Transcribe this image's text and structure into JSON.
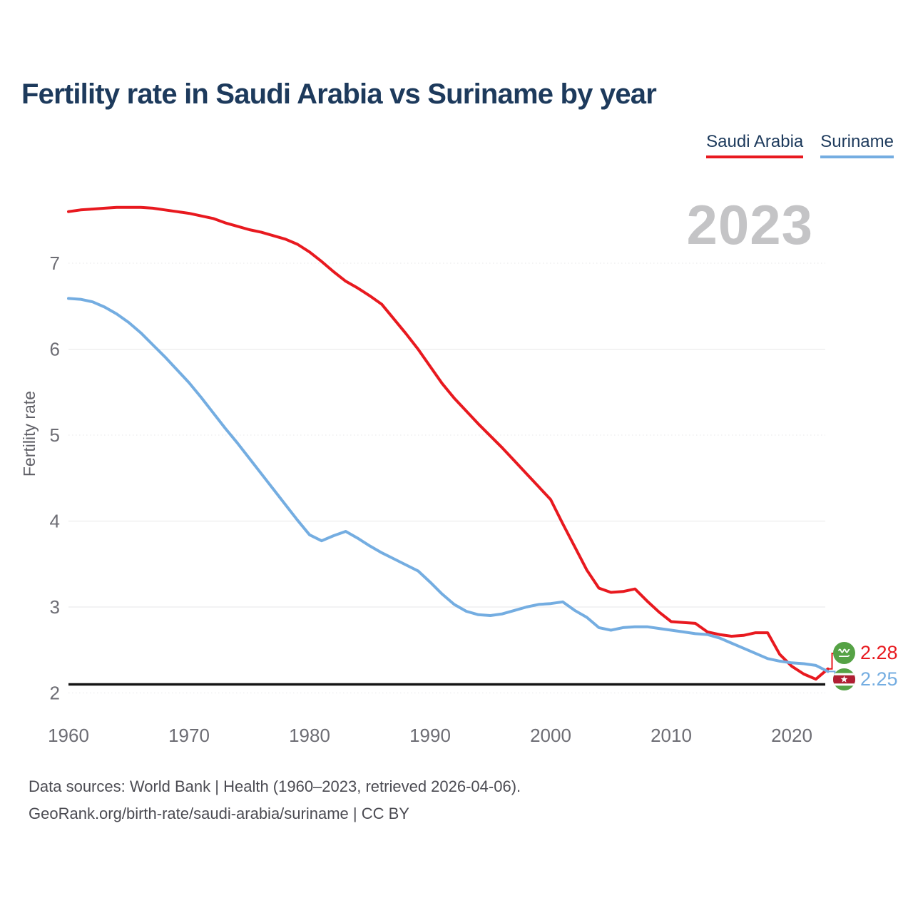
{
  "watermark": "2023",
  "footer": {
    "line1": "Data sources: World Bank | Health (1960–2023, retrieved 2026-04-06).",
    "line2": "GeoRank.org/birth-rate/saudi-arabia/suriname | CC BY"
  },
  "chart_data": {
    "type": "line",
    "title": "Fertility rate in Saudi Arabia vs Suriname by year",
    "ylabel": "Fertility rate",
    "xlabel": "",
    "watermark": "2023",
    "x_ticks": [
      1960,
      1970,
      1980,
      1990,
      2000,
      2010,
      2020
    ],
    "y_ticks": [
      7,
      6,
      5,
      4,
      3,
      2
    ],
    "xlim": [
      1960,
      2023
    ],
    "ylim": [
      2,
      7.8
    ],
    "grid": true,
    "legend_position": "top-right",
    "grid_color": "#e7e7e8",
    "axis_text_color": "#6d6d74",
    "reference_line": {
      "value": 2.1,
      "color": "#141414"
    },
    "years": [
      1960,
      1961,
      1962,
      1963,
      1964,
      1965,
      1966,
      1967,
      1968,
      1969,
      1970,
      1971,
      1972,
      1973,
      1974,
      1975,
      1976,
      1977,
      1978,
      1979,
      1980,
      1981,
      1982,
      1983,
      1984,
      1985,
      1986,
      1987,
      1988,
      1989,
      1990,
      1991,
      1992,
      1993,
      1994,
      1995,
      1996,
      1997,
      1998,
      1999,
      2000,
      2001,
      2002,
      2003,
      2004,
      2005,
      2006,
      2007,
      2008,
      2009,
      2010,
      2011,
      2012,
      2013,
      2014,
      2015,
      2016,
      2017,
      2018,
      2019,
      2020,
      2021,
      2022,
      2023
    ],
    "series": [
      {
        "name": "Saudi Arabia",
        "color": "#e8191f",
        "end_label": "2.28",
        "flag_icon": "saudi-arabia-flag-icon",
        "values": [
          7.6,
          7.62,
          7.63,
          7.64,
          7.65,
          7.65,
          7.65,
          7.64,
          7.62,
          7.6,
          7.58,
          7.55,
          7.52,
          7.47,
          7.43,
          7.39,
          7.36,
          7.32,
          7.28,
          7.22,
          7.13,
          7.02,
          6.9,
          6.79,
          6.71,
          6.62,
          6.52,
          6.35,
          6.18,
          6.0,
          5.8,
          5.6,
          5.43,
          5.28,
          5.13,
          4.99,
          4.85,
          4.7,
          4.55,
          4.4,
          4.25,
          3.97,
          3.7,
          3.43,
          3.22,
          3.17,
          3.18,
          3.21,
          3.07,
          2.94,
          2.83,
          2.82,
          2.81,
          2.71,
          2.68,
          2.66,
          2.67,
          2.7,
          2.7,
          2.45,
          2.31,
          2.22,
          2.16,
          2.28
        ]
      },
      {
        "name": "Suriname",
        "color": "#74ade1",
        "end_label": "2.25",
        "flag_icon": "suriname-flag-icon",
        "values": [
          6.59,
          6.58,
          6.55,
          6.49,
          6.41,
          6.31,
          6.19,
          6.05,
          5.91,
          5.76,
          5.61,
          5.44,
          5.26,
          5.08,
          4.91,
          4.73,
          4.55,
          4.37,
          4.19,
          4.01,
          3.84,
          3.77,
          3.83,
          3.88,
          3.8,
          3.71,
          3.63,
          3.56,
          3.49,
          3.42,
          3.29,
          3.15,
          3.03,
          2.95,
          2.91,
          2.9,
          2.92,
          2.96,
          3.0,
          3.03,
          3.04,
          3.06,
          2.96,
          2.88,
          2.76,
          2.73,
          2.76,
          2.77,
          2.77,
          2.75,
          2.73,
          2.71,
          2.69,
          2.68,
          2.64,
          2.58,
          2.52,
          2.46,
          2.4,
          2.37,
          2.35,
          2.34,
          2.32,
          2.25
        ]
      }
    ]
  }
}
